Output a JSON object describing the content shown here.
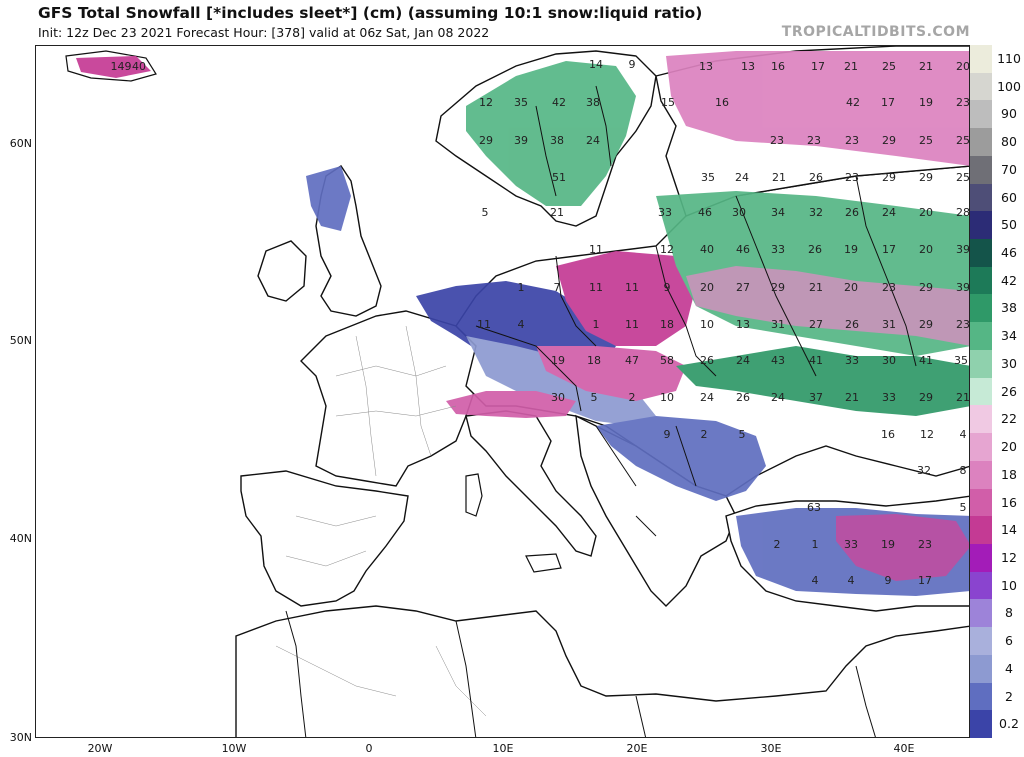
{
  "header": {
    "title": "GFS Total Snowfall [*includes sleet*] (cm) (assuming 10:1 snow:liquid ratio)",
    "subtitle": "Init: 12z Dec 23 2021   Forecast Hour: [378]   valid at 06z Sat, Jan 08 2022",
    "brand": "TROPICALTIDBITS.COM"
  },
  "axes": {
    "lat_labels": [
      "60N",
      "50N",
      "40N",
      "30N"
    ],
    "lon_labels": [
      "20W",
      "10W",
      "0",
      "10E",
      "20E",
      "30E",
      "40E"
    ]
  },
  "colorbar": {
    "levels": [
      {
        "label": "110",
        "color": "#ececdc"
      },
      {
        "label": "100",
        "color": "#d6d6d0"
      },
      {
        "label": "90",
        "color": "#bdbdbd"
      },
      {
        "label": "80",
        "color": "#9c9c9c"
      },
      {
        "label": "70",
        "color": "#6f6f76"
      },
      {
        "label": "60",
        "color": "#4e4e77"
      },
      {
        "label": "50",
        "color": "#2c2c76"
      },
      {
        "label": "46",
        "color": "#14544a"
      },
      {
        "label": "42",
        "color": "#1d7a58"
      },
      {
        "label": "38",
        "color": "#2f9968"
      },
      {
        "label": "34",
        "color": "#55b685"
      },
      {
        "label": "30",
        "color": "#8fd1ad"
      },
      {
        "label": "26",
        "color": "#c6ead6"
      },
      {
        "label": "22",
        "color": "#f0c9e3"
      },
      {
        "label": "20",
        "color": "#e6a5d1"
      },
      {
        "label": "18",
        "color": "#dc82bf"
      },
      {
        "label": "16",
        "color": "#d15ea9"
      },
      {
        "label": "14",
        "color": "#c43a94"
      },
      {
        "label": "12",
        "color": "#a31cb8"
      },
      {
        "label": "10",
        "color": "#8a44cf"
      },
      {
        "label": "8",
        "color": "#9d83d9"
      },
      {
        "label": "6",
        "color": "#a9b0dc"
      },
      {
        "label": "4",
        "color": "#8d9ad1"
      },
      {
        "label": "2",
        "color": "#5f6ec0"
      },
      {
        "label": "0.2",
        "color": "#3b44a8"
      }
    ]
  },
  "map_values": [
    {
      "text": "149"
    },
    {
      "text": "40"
    },
    {
      "text": "14"
    },
    {
      "text": "9"
    },
    {
      "text": "13"
    },
    {
      "text": "13"
    },
    {
      "text": "16"
    },
    {
      "text": "17"
    },
    {
      "text": "21"
    },
    {
      "text": "25"
    },
    {
      "text": "21"
    },
    {
      "text": "20"
    },
    {
      "text": "12"
    },
    {
      "text": "35"
    },
    {
      "text": "42"
    },
    {
      "text": "38"
    },
    {
      "text": "15"
    },
    {
      "text": "16"
    },
    {
      "text": "42"
    },
    {
      "text": "17"
    },
    {
      "text": "19"
    },
    {
      "text": "23"
    },
    {
      "text": "29"
    },
    {
      "text": "39"
    },
    {
      "text": "38"
    },
    {
      "text": "24"
    },
    {
      "text": "23"
    },
    {
      "text": "23"
    },
    {
      "text": "23"
    },
    {
      "text": "29"
    },
    {
      "text": "25"
    },
    {
      "text": "25"
    },
    {
      "text": "51"
    },
    {
      "text": "35"
    },
    {
      "text": "24"
    },
    {
      "text": "21"
    },
    {
      "text": "26"
    },
    {
      "text": "23"
    },
    {
      "text": "29"
    },
    {
      "text": "29"
    },
    {
      "text": "25"
    },
    {
      "text": "5"
    },
    {
      "text": "21"
    },
    {
      "text": "33"
    },
    {
      "text": "46"
    },
    {
      "text": "30"
    },
    {
      "text": "34"
    },
    {
      "text": "32"
    },
    {
      "text": "26"
    },
    {
      "text": "24"
    },
    {
      "text": "20"
    },
    {
      "text": "28"
    },
    {
      "text": "11"
    },
    {
      "text": "12"
    },
    {
      "text": "40"
    },
    {
      "text": "46"
    },
    {
      "text": "33"
    },
    {
      "text": "26"
    },
    {
      "text": "19"
    },
    {
      "text": "17"
    },
    {
      "text": "20"
    },
    {
      "text": "39"
    },
    {
      "text": "1"
    },
    {
      "text": "7"
    },
    {
      "text": "11"
    },
    {
      "text": "11"
    },
    {
      "text": "9"
    },
    {
      "text": "20"
    },
    {
      "text": "27"
    },
    {
      "text": "29"
    },
    {
      "text": "21"
    },
    {
      "text": "20"
    },
    {
      "text": "23"
    },
    {
      "text": "29"
    },
    {
      "text": "39"
    },
    {
      "text": "11"
    },
    {
      "text": "4"
    },
    {
      "text": "1"
    },
    {
      "text": "11"
    },
    {
      "text": "18"
    },
    {
      "text": "10"
    },
    {
      "text": "13"
    },
    {
      "text": "31"
    },
    {
      "text": "27"
    },
    {
      "text": "26"
    },
    {
      "text": "31"
    },
    {
      "text": "29"
    },
    {
      "text": "23"
    },
    {
      "text": "19"
    },
    {
      "text": "18"
    },
    {
      "text": "47"
    },
    {
      "text": "58"
    },
    {
      "text": "26"
    },
    {
      "text": "24"
    },
    {
      "text": "43"
    },
    {
      "text": "41"
    },
    {
      "text": "33"
    },
    {
      "text": "30"
    },
    {
      "text": "41"
    },
    {
      "text": "35"
    },
    {
      "text": "30"
    },
    {
      "text": "5"
    },
    {
      "text": "2"
    },
    {
      "text": "10"
    },
    {
      "text": "24"
    },
    {
      "text": "26"
    },
    {
      "text": "24"
    },
    {
      "text": "37"
    },
    {
      "text": "21"
    },
    {
      "text": "33"
    },
    {
      "text": "29"
    },
    {
      "text": "21"
    },
    {
      "text": "9"
    },
    {
      "text": "2"
    },
    {
      "text": "5"
    },
    {
      "text": "16"
    },
    {
      "text": "12"
    },
    {
      "text": "4"
    },
    {
      "text": "32"
    },
    {
      "text": "8"
    },
    {
      "text": "5"
    },
    {
      "text": "63"
    },
    {
      "text": "2"
    },
    {
      "text": "1"
    },
    {
      "text": "33"
    },
    {
      "text": "19"
    },
    {
      "text": "23"
    },
    {
      "text": "4"
    },
    {
      "text": "4"
    },
    {
      "text": "9"
    },
    {
      "text": "17"
    }
  ],
  "colors": {
    "land_outline": "#111111",
    "admin_border": "#8a8a8a",
    "sea": "#ffffff"
  }
}
